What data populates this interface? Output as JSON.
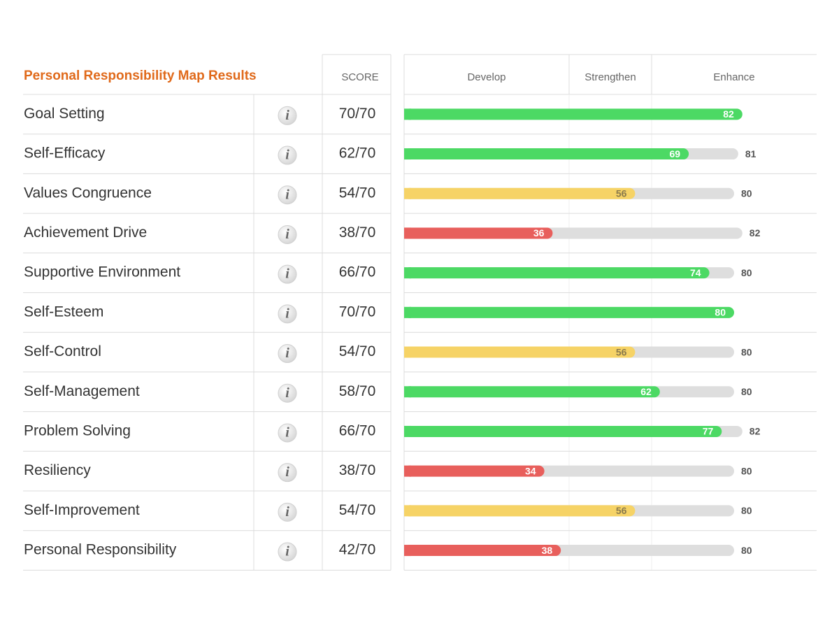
{
  "title": "Personal Responsibility Map Results",
  "score_header": "SCORE",
  "info_icon": "i",
  "zones": [
    {
      "label": "Develop",
      "from": 0,
      "to": 40,
      "color": "#e85f5c",
      "text_color": "#ffffff"
    },
    {
      "label": "Strengthen",
      "from": 40,
      "to": 60,
      "color": "#f6d366",
      "text_color": "#8a7a4c"
    },
    {
      "label": "Enhance",
      "from": 60,
      "to": 100,
      "color": "#4cd964",
      "text_color": "#ffffff"
    }
  ],
  "rows": [
    {
      "name": "Goal Setting",
      "score": "70/70",
      "value": 82,
      "max": null
    },
    {
      "name": "Self-Efficacy",
      "score": "62/70",
      "value": 69,
      "max": 81
    },
    {
      "name": "Values Congruence",
      "score": "54/70",
      "value": 56,
      "max": 80
    },
    {
      "name": "Achievement Drive",
      "score": "38/70",
      "value": 36,
      "max": 82
    },
    {
      "name": "Supportive Environment",
      "score": "66/70",
      "value": 74,
      "max": 80
    },
    {
      "name": "Self-Esteem",
      "score": "70/70",
      "value": 80,
      "max": null
    },
    {
      "name": "Self-Control",
      "score": "54/70",
      "value": 56,
      "max": 80
    },
    {
      "name": "Self-Management",
      "score": "58/70",
      "value": 62,
      "max": 80
    },
    {
      "name": "Problem Solving",
      "score": "66/70",
      "value": 77,
      "max": 82
    },
    {
      "name": "Resiliency",
      "score": "38/70",
      "value": 34,
      "max": 80
    },
    {
      "name": "Self-Improvement",
      "score": "54/70",
      "value": 56,
      "max": 80
    },
    {
      "name": "Personal Responsibility",
      "score": "42/70",
      "value": 38,
      "max": 80
    }
  ]
}
